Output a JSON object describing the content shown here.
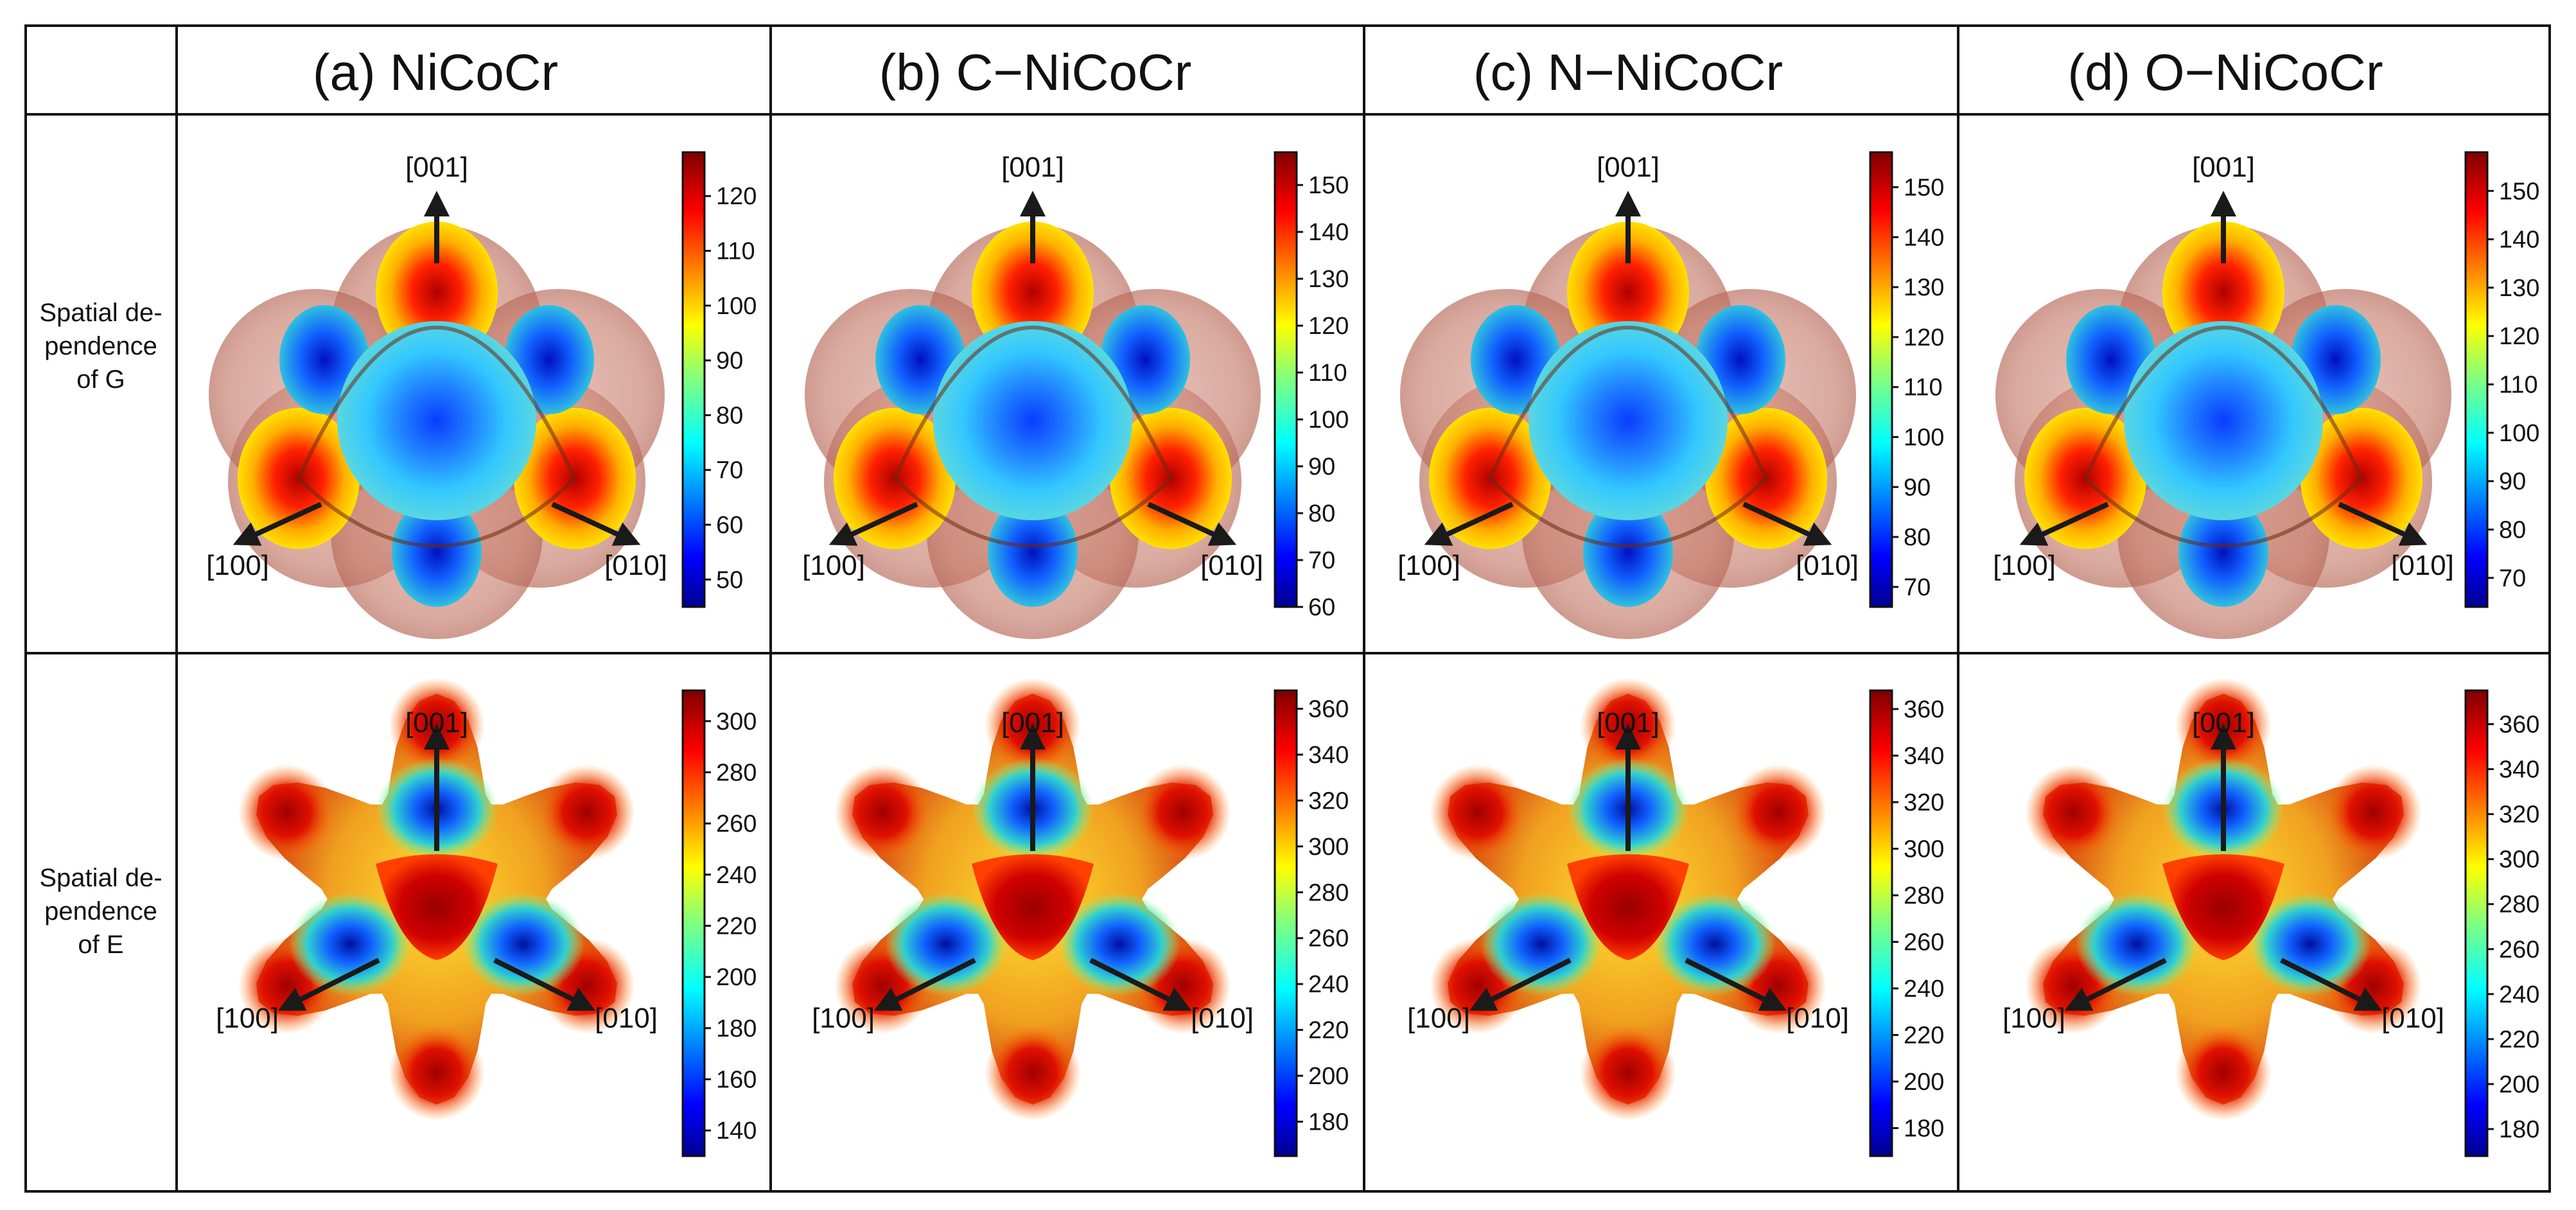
{
  "columns": [
    {
      "title": "(a) NiCoCr"
    },
    {
      "title": "(b) C−NiCoCr"
    },
    {
      "title": "(c) N−NiCoCr"
    },
    {
      "title": "(d) O−NiCoCr"
    }
  ],
  "rows": [
    {
      "label_lines": [
        "Spatial de-",
        "pendence",
        "of G"
      ]
    },
    {
      "label_lines": [
        "Spatial de-",
        "pendence",
        "of E"
      ]
    }
  ],
  "axis_labels": {
    "z": "[001]",
    "x": "[100]",
    "y": "[010]"
  },
  "colorbars": {
    "G": [
      {
        "ticks": [
          "120",
          "110",
          "100",
          "90",
          "80",
          "70",
          "60",
          "50"
        ],
        "min": 45,
        "max": 128
      },
      {
        "ticks": [
          "150",
          "140",
          "130",
          "120",
          "110",
          "100",
          "90",
          "80",
          "70",
          "60"
        ],
        "min": 60,
        "max": 157
      },
      {
        "ticks": [
          "150",
          "140",
          "130",
          "120",
          "110",
          "100",
          "90",
          "80",
          "70"
        ],
        "min": 66,
        "max": 157
      },
      {
        "ticks": [
          "150",
          "140",
          "130",
          "120",
          "110",
          "100",
          "90",
          "80",
          "70"
        ],
        "min": 64,
        "max": 158
      }
    ],
    "E": [
      {
        "ticks": [
          "300",
          "280",
          "260",
          "240",
          "220",
          "200",
          "180",
          "160",
          "140"
        ],
        "min": 130,
        "max": 312
      },
      {
        "ticks": [
          "360",
          "340",
          "320",
          "300",
          "280",
          "260",
          "240",
          "220",
          "200",
          "180"
        ],
        "min": 165,
        "max": 368
      },
      {
        "ticks": [
          "360",
          "340",
          "320",
          "300",
          "280",
          "260",
          "240",
          "220",
          "200",
          "180"
        ],
        "min": 168,
        "max": 368
      },
      {
        "ticks": [
          "360",
          "340",
          "320",
          "300",
          "280",
          "260",
          "240",
          "220",
          "200",
          "180"
        ],
        "min": 168,
        "max": 375
      }
    ]
  },
  "colors": {
    "jet_low": "#00008f",
    "jet_high": "#7f0000",
    "shell": "#c98070",
    "border": "#111111"
  }
}
